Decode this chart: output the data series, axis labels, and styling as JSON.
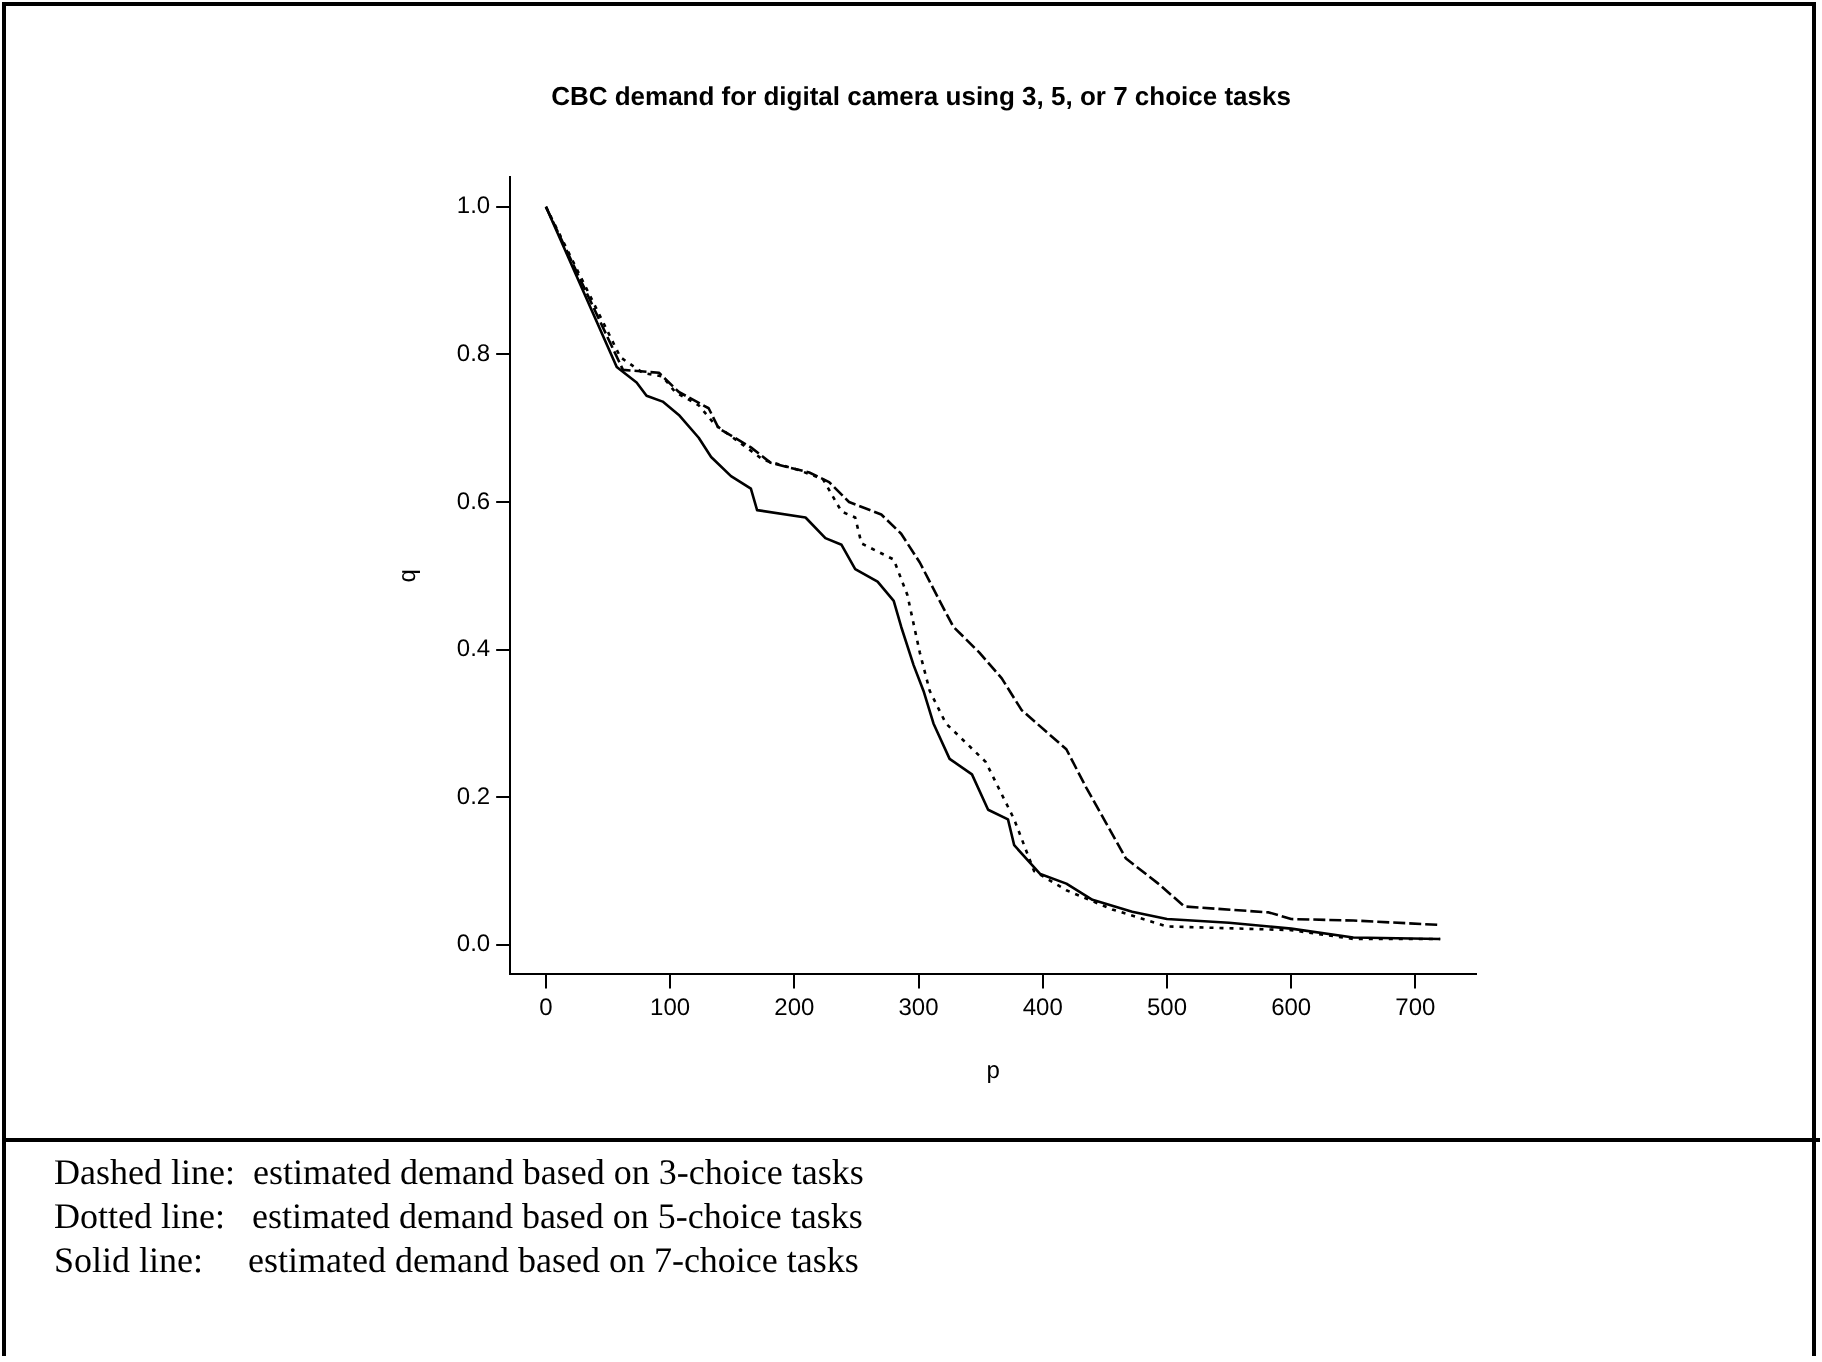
{
  "chart_data": {
    "type": "line",
    "title": "CBC demand for digital camera using 3, 5, or 7 choice tasks",
    "xlabel": "p",
    "ylabel": "q",
    "xlim": [
      -28.8,
      748.8
    ],
    "ylim": [
      -0.04,
      1.04
    ],
    "xticks": [
      0,
      100,
      200,
      300,
      400,
      500,
      600,
      700
    ],
    "yticks": [
      {
        "value": 0,
        "label": "0.0"
      },
      {
        "value": 0.2,
        "label": "0.2"
      },
      {
        "value": 0.4,
        "label": "0.4"
      },
      {
        "value": 0.6,
        "label": "0.6"
      },
      {
        "value": 0.8,
        "label": "0.8"
      },
      {
        "value": 1,
        "label": "1.0"
      }
    ],
    "grid": false,
    "legend": false,
    "marker": "none",
    "series": [
      {
        "color": "#000000",
        "line_style": "dashed",
        "x": [
          0,
          62,
          91,
          107,
          131,
          139,
          165,
          181,
          212,
          228,
          244,
          270,
          286,
          301,
          317,
          328,
          349,
          367,
          383,
          419,
          435,
          451,
          467,
          493,
          514,
          582,
          600,
          650,
          720
        ],
        "values": [
          1.0,
          0.779,
          0.775,
          0.749,
          0.727,
          0.7,
          0.674,
          0.653,
          0.64,
          0.627,
          0.6,
          0.583,
          0.557,
          0.518,
          0.466,
          0.431,
          0.396,
          0.361,
          0.318,
          0.265,
          0.213,
          0.165,
          0.117,
          0.083,
          0.052,
          0.044,
          0.035,
          0.033,
          0.027
        ]
      },
      {
        "color": "#000000",
        "line_style": "dotted",
        "x": [
          0,
          60,
          78,
          94,
          104,
          123,
          136,
          154,
          175,
          202,
          223,
          238,
          249,
          254,
          280,
          291,
          301,
          309,
          322,
          354,
          377,
          393,
          419,
          456,
          500,
          600,
          650,
          720
        ],
        "values": [
          1.0,
          0.796,
          0.775,
          0.77,
          0.749,
          0.731,
          0.705,
          0.683,
          0.657,
          0.644,
          0.631,
          0.587,
          0.579,
          0.544,
          0.522,
          0.474,
          0.396,
          0.344,
          0.3,
          0.248,
          0.17,
          0.1,
          0.074,
          0.048,
          0.025,
          0.02,
          0.008,
          0.008
        ]
      },
      {
        "color": "#000000",
        "line_style": "solid",
        "x": [
          0,
          57,
          73,
          81,
          94,
          107,
          123,
          133,
          149,
          165,
          170,
          209,
          225,
          238,
          249,
          267,
          280,
          286,
          296,
          304,
          312,
          325,
          343,
          356,
          372,
          377,
          398,
          419,
          440,
          472,
          500,
          550,
          600,
          650,
          720
        ],
        "values": [
          1.0,
          0.783,
          0.762,
          0.744,
          0.736,
          0.718,
          0.687,
          0.661,
          0.635,
          0.618,
          0.589,
          0.579,
          0.551,
          0.542,
          0.509,
          0.492,
          0.466,
          0.431,
          0.379,
          0.344,
          0.3,
          0.252,
          0.231,
          0.183,
          0.17,
          0.135,
          0.096,
          0.083,
          0.061,
          0.045,
          0.035,
          0.03,
          0.022,
          0.01,
          0.008
        ]
      }
    ],
    "annotations": [
      "Dashed line:  estimated demand based on 3-choice tasks",
      "Dotted line:   estimated demand based on 5-choice tasks",
      "Solid line:     estimated demand based on 7-choice tasks"
    ]
  }
}
